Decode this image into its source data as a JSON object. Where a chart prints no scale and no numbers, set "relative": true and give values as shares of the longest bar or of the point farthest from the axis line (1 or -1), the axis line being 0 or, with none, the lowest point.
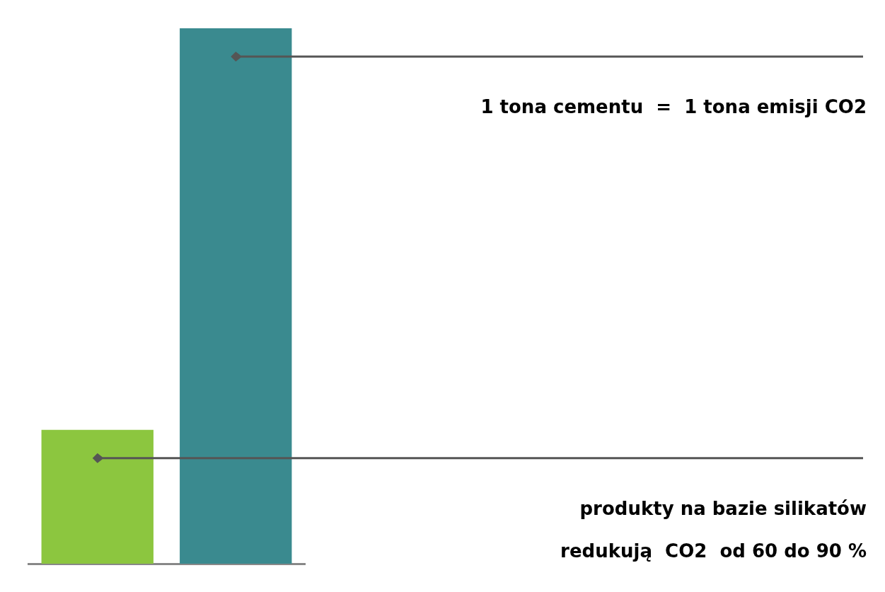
{
  "chart_data": {
    "type": "bar",
    "relative": true,
    "categories": [
      null,
      null
    ],
    "values": [
      0.25,
      1
    ],
    "colors": [
      "#8cc63f",
      "#3a8a8f"
    ],
    "annotations": [
      "1 tona cementu  =  1 tona emisji CO2",
      "produkty na bazie silikatów",
      "redukują  CO2  od 60 do 90 %"
    ],
    "grid": false,
    "legend": false
  }
}
